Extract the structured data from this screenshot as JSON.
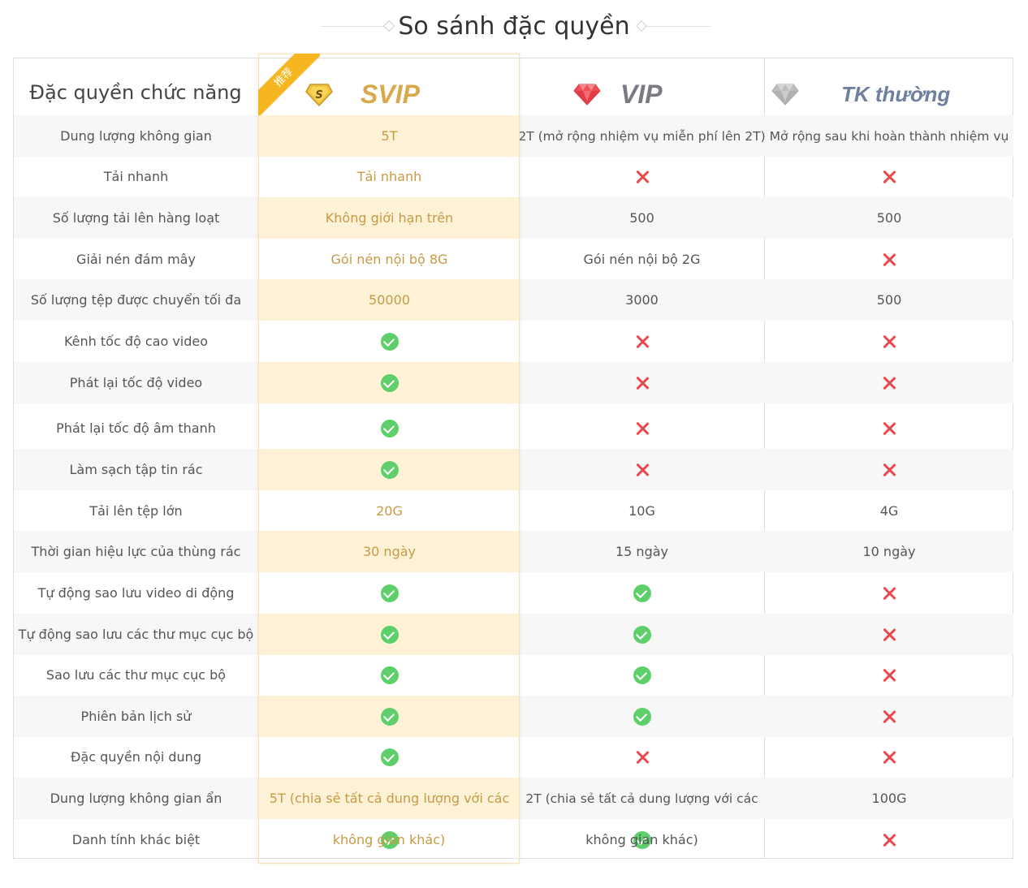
{
  "page": {
    "title": "So sánh đặc quyền"
  },
  "badge": {
    "label": "推荐"
  },
  "header": {
    "feature_label": "Đặc quyền chức năng",
    "svip": {
      "label": "SVIP",
      "icon": "s-badge-icon"
    },
    "vip": {
      "label": "VIP",
      "icon": "red-diamond-icon"
    },
    "normal": {
      "label": "TK thường",
      "icon": "gray-diamond-icon"
    }
  },
  "rows": [
    {
      "feature": "Dung lượng không gian",
      "svip": "5T",
      "vip": "2T (mở rộng nhiệm vụ miễn phí lên 2T)",
      "normal": "Mở rộng sau khi hoàn thành nhiệm vụ"
    },
    {
      "feature": "Tải nhanh",
      "svip": "Tải nhanh",
      "vip": "cross",
      "normal": "cross"
    },
    {
      "feature": "Số lượng tải lên hàng loạt",
      "svip": "Không giới hạn trên",
      "vip": "500",
      "normal": "500"
    },
    {
      "feature": "Giải nén đám mây",
      "svip": "Gói nén nội bộ 8G",
      "vip": "Gói nén nội bộ 2G",
      "normal": "cross"
    },
    {
      "feature": "Số lượng tệp được chuyển tối đa",
      "svip": "50000",
      "vip": "3000",
      "normal": "500"
    },
    {
      "feature": "Kênh tốc độ cao video",
      "svip": "check",
      "vip": "cross",
      "normal": "cross"
    },
    {
      "feature": "Phát lại tốc độ video",
      "svip": "check",
      "vip": "cross",
      "normal": "cross"
    },
    {
      "feature": "Phát lại tốc độ âm thanh",
      "svip": "check",
      "vip": "cross",
      "normal": "cross"
    },
    {
      "feature": "Làm sạch tập tin rác",
      "svip": "check",
      "vip": "cross",
      "normal": "cross"
    },
    {
      "feature": "Tải lên tệp lớn",
      "svip": "20G",
      "vip": "10G",
      "normal": "4G"
    },
    {
      "feature": "Thời gian hiệu lực của thùng rác",
      "svip": "30 ngày",
      "vip": "15 ngày",
      "normal": "10 ngày"
    },
    {
      "feature": "Tự động sao lưu video di động",
      "svip": "check",
      "vip": "check",
      "normal": "cross"
    },
    {
      "feature": "Tự động sao lưu các thư mục cục bộ",
      "svip": "check",
      "vip": "check",
      "normal": "cross"
    },
    {
      "feature": "Sao lưu các thư mục cục bộ",
      "svip": "check",
      "vip": "check",
      "normal": "cross"
    },
    {
      "feature": "Phiên bản lịch sử",
      "svip": "check",
      "vip": "check",
      "normal": "cross"
    },
    {
      "feature": "Đặc quyền nội dung",
      "svip": "check",
      "vip": "cross",
      "normal": "cross"
    },
    {
      "feature": "Dung lượng không gian ẩn",
      "svip": "5T (chia sẻ tất cả dung lượng với các",
      "vip": "2T (chia sẻ tất cả dung lượng với các",
      "normal": "100G"
    },
    {
      "feature": "Danh tính khác biệt",
      "svip": "check",
      "vip": "check",
      "normal": "cross"
    }
  ],
  "overflow": {
    "svip": "không gian khác)",
    "vip": "không gian khác)"
  }
}
